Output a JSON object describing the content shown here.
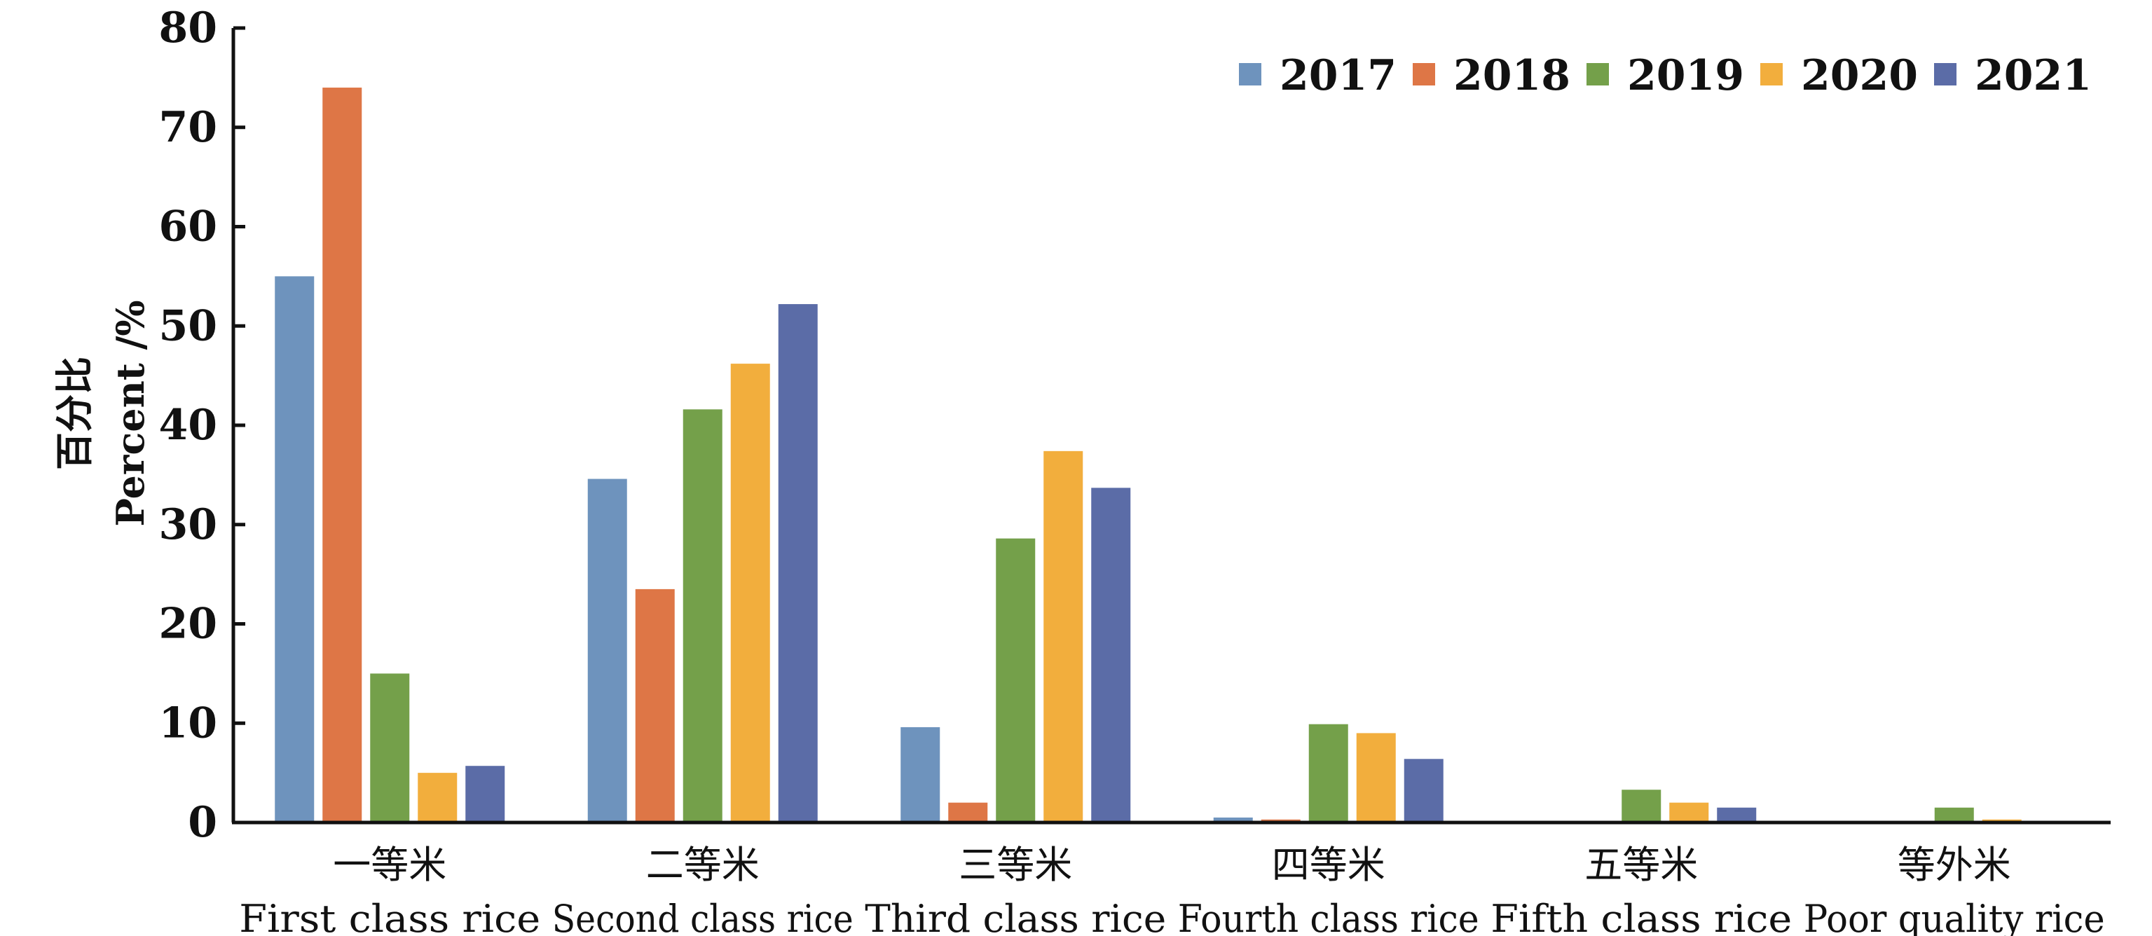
{
  "chart_data": {
    "type": "bar",
    "categories": [
      {
        "zh": "一等米",
        "en": "First class rice"
      },
      {
        "zh": "二等米",
        "en": "Second class rice"
      },
      {
        "zh": "三等米",
        "en": "Third class rice"
      },
      {
        "zh": "四等米",
        "en": "Fourth class rice"
      },
      {
        "zh": "五等米",
        "en": "Fifth class rice"
      },
      {
        "zh": "等外米",
        "en": "Poor quality rice"
      }
    ],
    "series": [
      {
        "name": "2017",
        "color": "#6E93BD",
        "values": [
          55.0,
          34.6,
          9.6,
          0.5,
          0.0,
          0.0
        ]
      },
      {
        "name": "2018",
        "color": "#DE7646",
        "values": [
          74.0,
          23.5,
          2.0,
          0.3,
          0.0,
          0.0
        ]
      },
      {
        "name": "2019",
        "color": "#74A04A",
        "values": [
          15.0,
          41.6,
          28.6,
          9.9,
          3.3,
          1.5
        ]
      },
      {
        "name": "2020",
        "color": "#F2AE3D",
        "values": [
          5.0,
          46.2,
          37.4,
          9.0,
          2.0,
          0.3
        ]
      },
      {
        "name": "2021",
        "color": "#5B6CA7",
        "values": [
          5.7,
          52.2,
          33.7,
          6.4,
          1.5,
          0.0
        ]
      }
    ],
    "ylabel_zh": "百分比",
    "ylabel_en": "Percent /%",
    "xlabel": "",
    "title": "",
    "ylim": [
      0,
      80
    ],
    "yticks": [
      0,
      10,
      20,
      30,
      40,
      50,
      60,
      70,
      80
    ],
    "grid": false,
    "legend_position": "top-right"
  }
}
